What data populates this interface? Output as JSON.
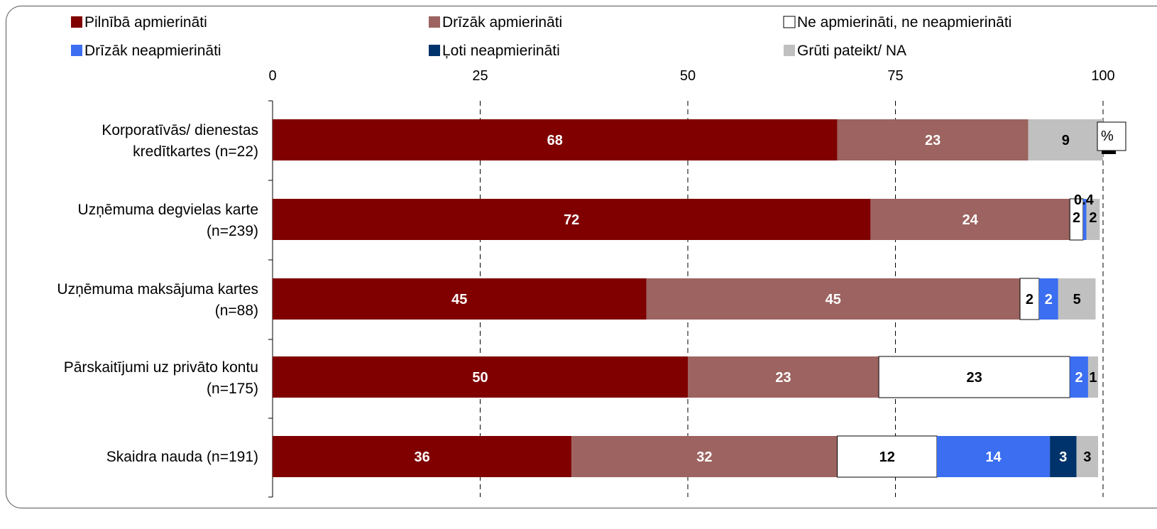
{
  "chart_data": {
    "type": "bar",
    "orientation": "horizontal",
    "stacked": true,
    "unit": "%",
    "xlim": [
      0,
      100
    ],
    "xticks": [
      0,
      25,
      50,
      75,
      100
    ],
    "grid": true,
    "legend_position": "top",
    "categories": [
      [
        "Korporatīvās/ dienestas",
        "kredītkartes (n=22)"
      ],
      [
        "Uzņēmuma degvielas karte",
        "(n=239)"
      ],
      [
        "Uzņēmuma maksājuma kartes",
        "(n=88)"
      ],
      [
        "Pārskaitījumi uz privāto kontu",
        "(n=175)"
      ],
      [
        "Skaidra nauda (n=191)"
      ]
    ],
    "series": [
      {
        "name": "Pilnībā apmierināti",
        "color": "#800000",
        "label_color": "#ffffff",
        "values": [
          68,
          72,
          45,
          50,
          36
        ],
        "labels": [
          "68",
          "72",
          "45",
          "50",
          "36"
        ]
      },
      {
        "name": "Drīzāk apmierināti",
        "color": "#9c6360",
        "label_color": "#ffffff",
        "values": [
          23,
          24,
          45,
          23,
          32
        ],
        "labels": [
          "23",
          "24",
          "45",
          "23",
          "32"
        ]
      },
      {
        "name": "Ne apmierināti, ne neapmierināti",
        "color": "#ffffff",
        "label_color": "#000000",
        "values": [
          0,
          1.6,
          2.3,
          23,
          12
        ],
        "labels": [
          "",
          "2",
          "2",
          "23",
          "12"
        ]
      },
      {
        "name": "Drīzāk neapmierināti",
        "color": "#3b6ef0",
        "label_color": "#ffffff",
        "values": [
          0,
          0.4,
          2.3,
          2.2,
          13.6
        ],
        "labels": [
          "",
          "0.4",
          "2",
          "2",
          "14"
        ]
      },
      {
        "name": "Ļoti neapmierināti",
        "color": "#00336b",
        "label_color": "#ffffff",
        "values": [
          0,
          0,
          0,
          0,
          3.2
        ],
        "labels": [
          "",
          "",
          "",
          "",
          "3"
        ]
      },
      {
        "name": "Grūti pateikt/ NA",
        "color": "#c0c0c0",
        "label_color": "#000000",
        "values": [
          9,
          1.6,
          4.5,
          1.2,
          2.6
        ],
        "labels": [
          "9",
          "2",
          "5",
          "1",
          "3"
        ]
      }
    ],
    "unit_box_label": "%"
  }
}
